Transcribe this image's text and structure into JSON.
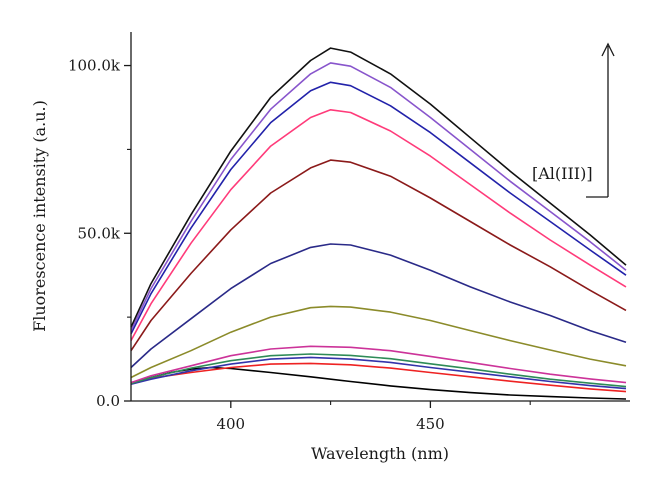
{
  "chart_data": {
    "type": "line",
    "title": "",
    "xlabel": "Wavelength (nm)",
    "ylabel": "Fluorescence intensity (a.u.)",
    "xlim": [
      375,
      500
    ],
    "ylim": [
      0,
      110000
    ],
    "x_ticks": [
      400,
      450
    ],
    "x_tick_labels": [
      "400",
      "450"
    ],
    "y_ticks": [
      0,
      50000,
      100000
    ],
    "y_tick_labels": [
      "0.0",
      "50.0k",
      "100.0k"
    ],
    "annotation": "[Al(III)]",
    "grid": false,
    "legend": "none",
    "series": [
      {
        "color": "#000000",
        "x": [
          375,
          380,
          385,
          390,
          395,
          400,
          410,
          420,
          430,
          440,
          450,
          460,
          470,
          480,
          490,
          499
        ],
        "y": [
          5500,
          7000,
          8500,
          9500,
          10000,
          9700,
          8500,
          7200,
          5800,
          4500,
          3400,
          2500,
          1800,
          1300,
          900,
          600
        ]
      },
      {
        "color": "#ee2222",
        "x": [
          375,
          380,
          390,
          400,
          410,
          420,
          430,
          440,
          450,
          460,
          470,
          480,
          490,
          499
        ],
        "y": [
          5500,
          6800,
          8500,
          10000,
          11000,
          11200,
          10800,
          9800,
          8500,
          7200,
          5900,
          4700,
          3600,
          2800
        ]
      },
      {
        "color": "#3333aa",
        "x": [
          375,
          380,
          390,
          400,
          410,
          420,
          430,
          440,
          450,
          460,
          470,
          480,
          490,
          499
        ],
        "y": [
          5000,
          6500,
          9000,
          11000,
          12500,
          13000,
          12500,
          11500,
          10000,
          8600,
          7200,
          5800,
          4600,
          3700
        ]
      },
      {
        "color": "#2e8b57",
        "x": [
          375,
          380,
          390,
          400,
          410,
          420,
          430,
          440,
          450,
          460,
          470,
          480,
          490,
          499
        ],
        "y": [
          5200,
          7000,
          9800,
          12000,
          13500,
          14000,
          13600,
          12600,
          11100,
          9600,
          8000,
          6500,
          5300,
          4300
        ]
      },
      {
        "color": "#cc3399",
        "x": [
          375,
          380,
          390,
          400,
          410,
          420,
          430,
          440,
          450,
          460,
          470,
          480,
          490,
          499
        ],
        "y": [
          5500,
          7500,
          10500,
          13500,
          15500,
          16300,
          16000,
          15000,
          13300,
          11500,
          9700,
          8000,
          6600,
          5500
        ]
      },
      {
        "color": "#8b8b2a",
        "x": [
          375,
          380,
          390,
          400,
          410,
          420,
          425,
          430,
          440,
          450,
          460,
          470,
          480,
          490,
          499
        ],
        "y": [
          7000,
          10000,
          15000,
          20500,
          25000,
          27800,
          28200,
          28000,
          26500,
          24000,
          21000,
          18000,
          15200,
          12500,
          10500
        ]
      },
      {
        "color": "#2a2a88",
        "x": [
          375,
          380,
          390,
          400,
          410,
          420,
          425,
          430,
          440,
          450,
          460,
          470,
          480,
          490,
          499
        ],
        "y": [
          10000,
          15500,
          24500,
          33500,
          41000,
          45800,
          46800,
          46500,
          43500,
          39000,
          34000,
          29500,
          25500,
          21000,
          17500
        ]
      },
      {
        "color": "#8b1a1a",
        "x": [
          375,
          380,
          390,
          400,
          410,
          420,
          425,
          430,
          440,
          450,
          460,
          470,
          480,
          490,
          499
        ],
        "y": [
          15000,
          24000,
          38000,
          51000,
          62000,
          69500,
          71800,
          71200,
          67000,
          60500,
          53500,
          46500,
          40000,
          33000,
          27000
        ]
      },
      {
        "color": "#ff3b7a",
        "x": [
          375,
          380,
          390,
          400,
          410,
          420,
          425,
          430,
          440,
          450,
          460,
          470,
          480,
          490,
          499
        ],
        "y": [
          18000,
          29000,
          47000,
          63000,
          76000,
          84500,
          86800,
          86000,
          80500,
          73000,
          64500,
          56000,
          48000,
          40500,
          34000
        ]
      },
      {
        "color": "#2222aa",
        "x": [
          375,
          380,
          390,
          400,
          410,
          420,
          425,
          430,
          440,
          450,
          460,
          470,
          480,
          490,
          499
        ],
        "y": [
          20000,
          32000,
          51500,
          69000,
          83000,
          92500,
          95000,
          94000,
          88000,
          80000,
          71000,
          62000,
          53500,
          45000,
          37500
        ]
      },
      {
        "color": "#8855cc",
        "x": [
          375,
          380,
          390,
          400,
          410,
          420,
          425,
          430,
          440,
          450,
          460,
          470,
          480,
          490,
          499
        ],
        "y": [
          21000,
          33500,
          53500,
          72000,
          87000,
          97500,
          100800,
          99800,
          93500,
          84500,
          75000,
          65500,
          56500,
          47500,
          39000
        ]
      },
      {
        "color": "#111111",
        "x": [
          375,
          380,
          390,
          400,
          410,
          420,
          425,
          430,
          440,
          450,
          460,
          470,
          480,
          490,
          499
        ],
        "y": [
          22000,
          35000,
          55500,
          74500,
          90500,
          101500,
          105200,
          104000,
          97500,
          88500,
          78500,
          68500,
          59000,
          49500,
          40500
        ]
      }
    ]
  }
}
